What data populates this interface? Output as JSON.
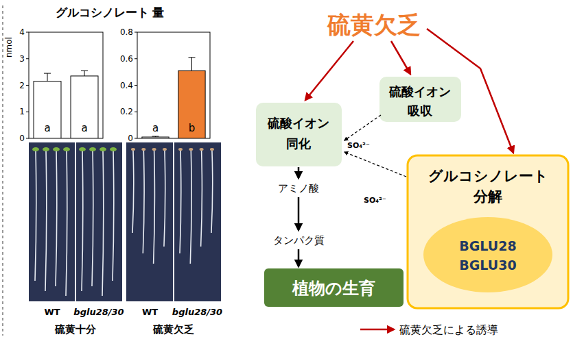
{
  "chart_data": [
    {
      "type": "bar",
      "title": "グルコシノレート 量",
      "y_label": "nmol",
      "condition": "硫黄十分",
      "categories": [
        "WT",
        "bglu28/30"
      ],
      "values": [
        2.15,
        2.35
      ],
      "errors": [
        0.3,
        0.2
      ],
      "letters": [
        "a",
        "a"
      ],
      "colors": [
        "#ffffff",
        "#ffffff"
      ],
      "ylim": [
        0,
        4
      ],
      "yticks": [
        0,
        1,
        2,
        3,
        4
      ]
    },
    {
      "type": "bar",
      "condition": "硫黄欠乏",
      "categories": [
        "WT",
        "bglu28/30"
      ],
      "values": [
        0.01,
        0.51
      ],
      "errors": [
        0.005,
        0.1
      ],
      "letters": [
        "a",
        "b"
      ],
      "colors": [
        "#ffffff",
        "#ed7d31"
      ],
      "ylim": [
        0,
        0.8
      ],
      "yticks": [
        0,
        0.2,
        0.4,
        0.6,
        0.8
      ]
    }
  ],
  "diagram": {
    "stress": "硫黄欠乏",
    "uptake": [
      "硫酸イオン",
      "吸収"
    ],
    "assimilation": [
      "硫酸イオン",
      "同化"
    ],
    "steps": [
      "アミノ酸",
      "タンパク質"
    ],
    "growth": "植物の生育",
    "degradation": [
      "グルコシノレート",
      "分解"
    ],
    "enzymes": [
      "BGLU28",
      "BGLU30"
    ],
    "ion": "SO₄²⁻",
    "legend_text": "硫黄欠乏による誘導"
  }
}
